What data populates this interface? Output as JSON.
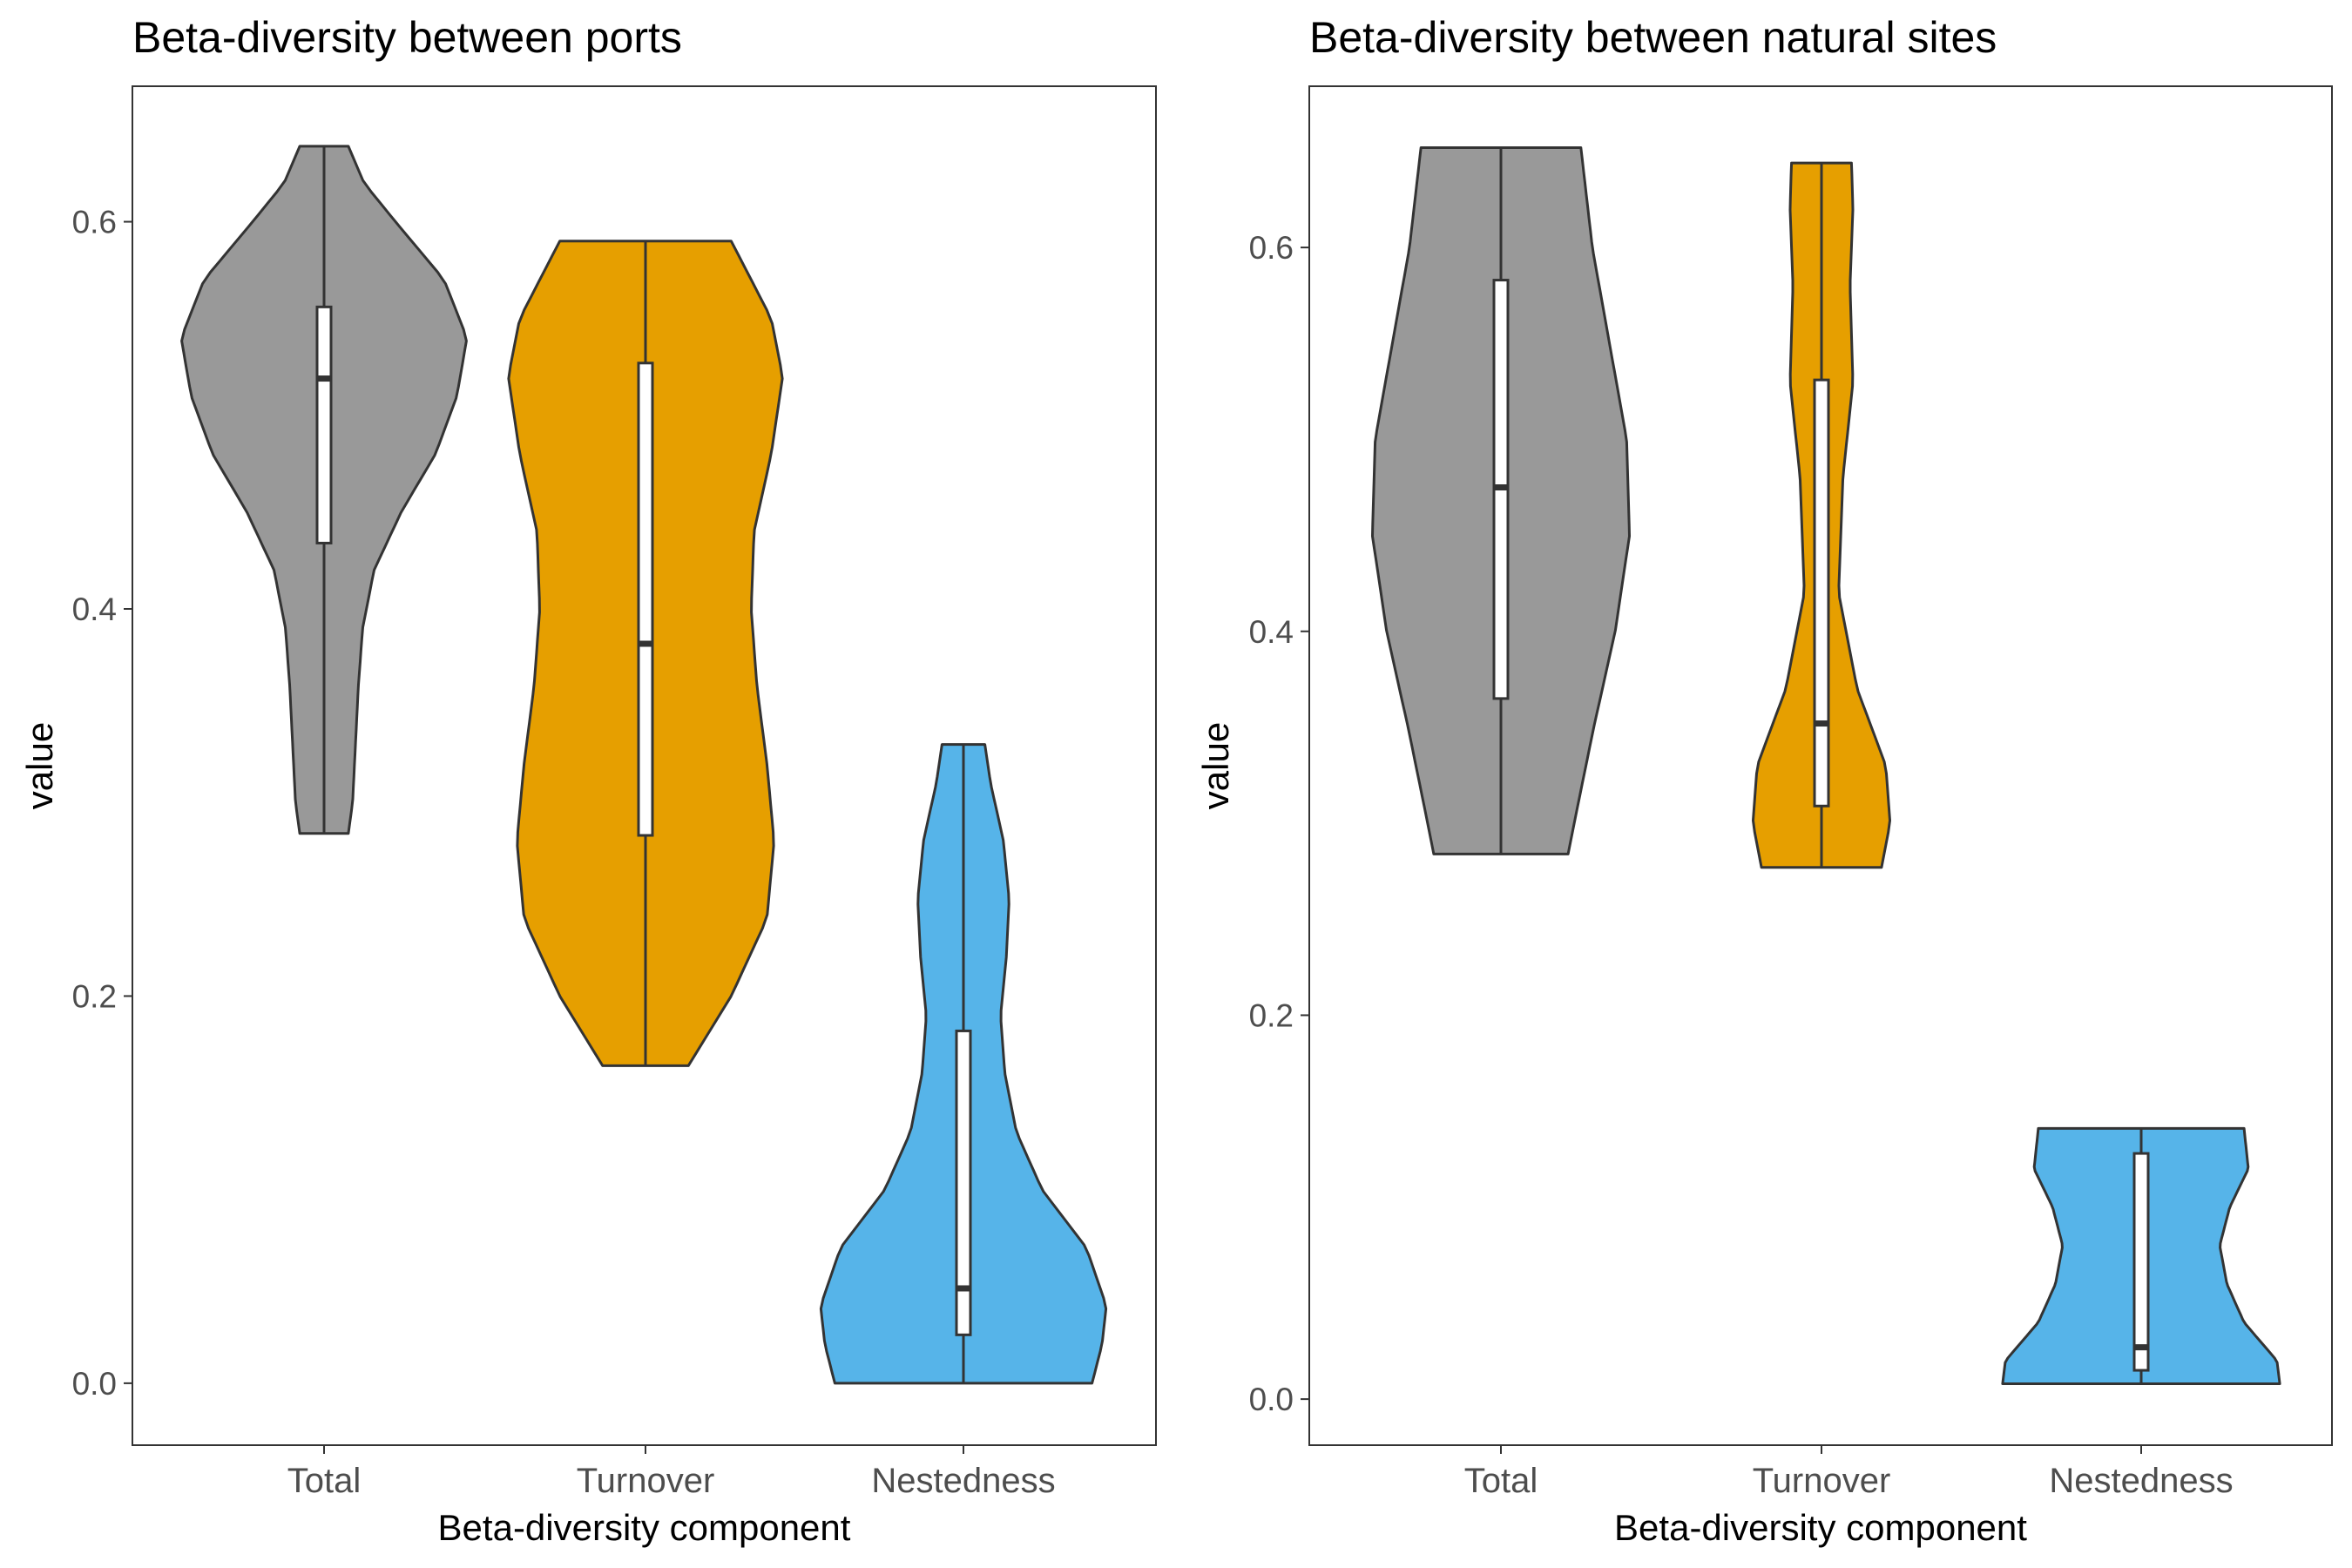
{
  "chart_data": [
    {
      "type": "violin",
      "title": "Beta-diversity between ports",
      "xlabel": "Beta-diversity component",
      "ylabel": "value",
      "categories": [
        "Total",
        "Turnover",
        "Nestedness"
      ],
      "ylim": [
        -0.032,
        0.67
      ],
      "yticks": [
        0.0,
        0.2,
        0.4,
        0.6
      ],
      "ytick_labels": [
        "0.0",
        "0.2",
        "0.4",
        "0.6"
      ],
      "grid": false,
      "series": [
        {
          "category": "Total",
          "color": "#999999",
          "min": 0.284,
          "max": 0.639,
          "q1": 0.434,
          "median": 0.519,
          "q3": 0.556,
          "density": [
            [
              0.284,
              0.17
            ],
            [
              0.3,
              0.2
            ],
            [
              0.33,
              0.22
            ],
            [
              0.36,
              0.24
            ],
            [
              0.39,
              0.27
            ],
            [
              0.42,
              0.35
            ],
            [
              0.45,
              0.54
            ],
            [
              0.48,
              0.78
            ],
            [
              0.51,
              0.93
            ],
            [
              0.54,
              1.0
            ],
            [
              0.57,
              0.84
            ],
            [
              0.6,
              0.5
            ],
            [
              0.62,
              0.28
            ],
            [
              0.639,
              0.17
            ]
          ]
        },
        {
          "category": "Turnover",
          "color": "#E69F00",
          "min": 0.164,
          "max": 0.59,
          "q1": 0.283,
          "median": 0.382,
          "q3": 0.527,
          "density": [
            [
              0.164,
              0.3
            ],
            [
              0.2,
              0.6
            ],
            [
              0.24,
              0.85
            ],
            [
              0.28,
              0.9
            ],
            [
              0.32,
              0.85
            ],
            [
              0.36,
              0.78
            ],
            [
              0.4,
              0.74
            ],
            [
              0.44,
              0.76
            ],
            [
              0.48,
              0.88
            ],
            [
              0.52,
              0.96
            ],
            [
              0.55,
              0.88
            ],
            [
              0.59,
              0.6
            ]
          ]
        },
        {
          "category": "Nestedness",
          "color": "#56B4E9",
          "min": 0.0,
          "max": 0.33,
          "q1": 0.025,
          "median": 0.049,
          "q3": 0.182,
          "density": [
            [
              0.0,
              0.9
            ],
            [
              0.02,
              0.97
            ],
            [
              0.04,
              1.0
            ],
            [
              0.07,
              0.86
            ],
            [
              0.1,
              0.55
            ],
            [
              0.13,
              0.37
            ],
            [
              0.16,
              0.29
            ],
            [
              0.19,
              0.26
            ],
            [
              0.22,
              0.3
            ],
            [
              0.25,
              0.32
            ],
            [
              0.28,
              0.28
            ],
            [
              0.31,
              0.19
            ],
            [
              0.33,
              0.15
            ]
          ]
        }
      ]
    },
    {
      "type": "violin",
      "title": "Beta-diversity between natural sites",
      "xlabel": "Beta-diversity component",
      "ylabel": "value",
      "categories": [
        "Total",
        "Turnover",
        "Nestedness"
      ],
      "ylim": [
        -0.024,
        0.684
      ],
      "yticks": [
        0.0,
        0.2,
        0.4,
        0.6
      ],
      "ytick_labels": [
        "0.0",
        "0.2",
        "0.4",
        "0.6"
      ],
      "grid": false,
      "series": [
        {
          "category": "Total",
          "color": "#999999",
          "min": 0.284,
          "max": 0.652,
          "q1": 0.365,
          "median": 0.475,
          "q3": 0.583,
          "density": [
            [
              0.284,
              0.47
            ],
            [
              0.31,
              0.54
            ],
            [
              0.35,
              0.65
            ],
            [
              0.4,
              0.8
            ],
            [
              0.45,
              0.9
            ],
            [
              0.5,
              0.88
            ],
            [
              0.55,
              0.76
            ],
            [
              0.6,
              0.64
            ],
            [
              0.652,
              0.56
            ]
          ]
        },
        {
          "category": "Turnover",
          "color": "#E69F00",
          "min": 0.277,
          "max": 0.644,
          "q1": 0.309,
          "median": 0.352,
          "q3": 0.531,
          "density": [
            [
              0.277,
              0.42
            ],
            [
              0.3,
              0.48
            ],
            [
              0.33,
              0.45
            ],
            [
              0.37,
              0.25
            ],
            [
              0.42,
              0.12
            ],
            [
              0.48,
              0.15
            ],
            [
              0.53,
              0.22
            ],
            [
              0.58,
              0.2
            ],
            [
              0.62,
              0.22
            ],
            [
              0.644,
              0.21
            ]
          ]
        },
        {
          "category": "Nestedness",
          "color": "#56B4E9",
          "min": 0.008,
          "max": 0.141,
          "q1": 0.015,
          "median": 0.027,
          "q3": 0.128,
          "density": [
            [
              0.008,
              0.97
            ],
            [
              0.02,
              0.95
            ],
            [
              0.04,
              0.72
            ],
            [
              0.06,
              0.6
            ],
            [
              0.08,
              0.55
            ],
            [
              0.1,
              0.62
            ],
            [
              0.12,
              0.75
            ],
            [
              0.141,
              0.72
            ]
          ]
        }
      ]
    }
  ]
}
